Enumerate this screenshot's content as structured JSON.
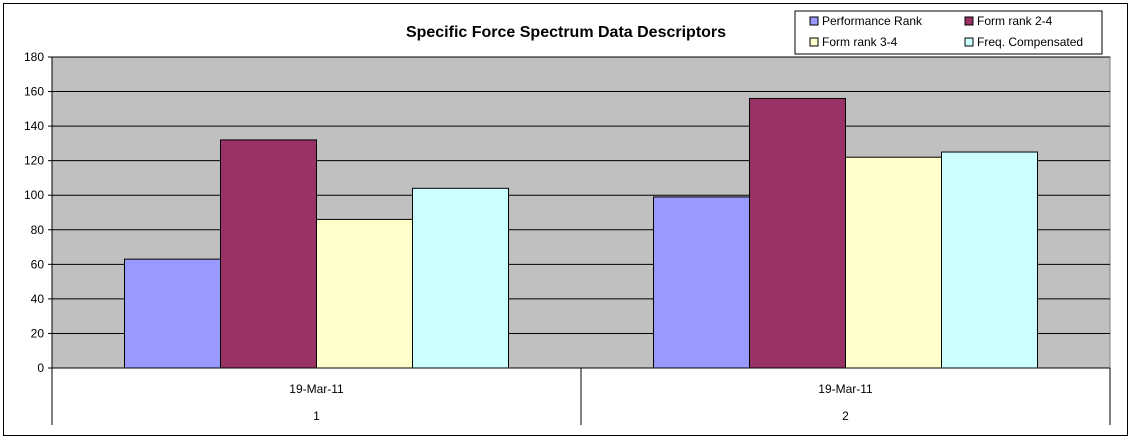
{
  "chart_data": {
    "type": "bar",
    "title": "Specific Force Spectrum Data Descriptors",
    "xlabel": "",
    "ylabel": "",
    "ylim": [
      0,
      180
    ],
    "yticks": [
      "0",
      "20",
      "40",
      "60",
      "80",
      "100",
      "120",
      "140",
      "160",
      "180"
    ],
    "grid": true,
    "legend_position": "top-right",
    "categories": [
      {
        "date": "19-Mar-11",
        "label": "1"
      },
      {
        "date": "19-Mar-11",
        "label": "2"
      }
    ],
    "series": [
      {
        "name": "Performance Rank",
        "color": "#9999ff",
        "values": [
          63,
          99
        ]
      },
      {
        "name": "Form rank 2-4",
        "color": "#993366",
        "values": [
          132,
          156
        ]
      },
      {
        "name": "Form rank 3-4",
        "color": "#ffffcc",
        "values": [
          86,
          122
        ]
      },
      {
        "name": "Freq. Compensated",
        "color": "#ccffff",
        "values": [
          104,
          125
        ]
      }
    ],
    "plot_background": "#c0c0c0"
  }
}
